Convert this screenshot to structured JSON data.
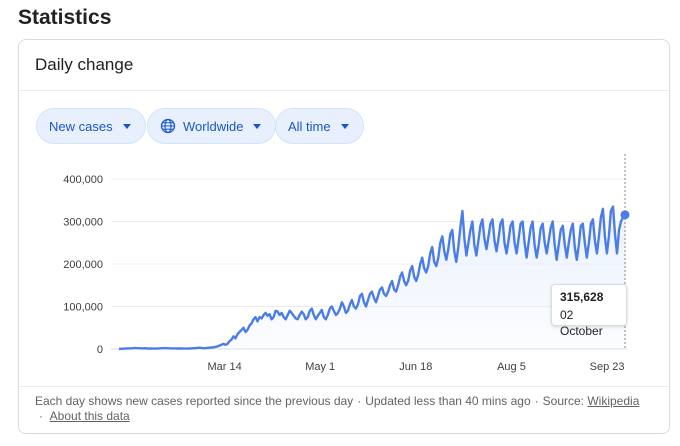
{
  "page": {
    "heading": "Statistics"
  },
  "card": {
    "title": "Daily change"
  },
  "filters": {
    "metric": "New cases",
    "region": "Worldwide",
    "range": "All time"
  },
  "icons": {
    "region_icon": "globe-icon",
    "dropdown_icon": "caret-down-icon"
  },
  "colors": {
    "line": "#4a7de8",
    "area_fill": "#e8f0fe",
    "chip_text": "#1a56c8"
  },
  "tooltip": {
    "value": "315,628",
    "date": "02 October"
  },
  "footer": {
    "note": "Each day shows new cases reported since the previous day",
    "updated": "Updated less than 40 mins ago",
    "source_label": "Source:",
    "source_link": "Wikipedia",
    "about_link": "About this data"
  },
  "chart_data": {
    "type": "area",
    "title": "",
    "xlabel": "",
    "ylabel": "",
    "ylim": [
      0,
      400000
    ],
    "y_ticks": [
      "0",
      "100,000",
      "200,000",
      "300,000",
      "400,000"
    ],
    "x_ticks": [
      "Mar 14",
      "May 1",
      "Jun 18",
      "Aug 5",
      "Sep 23"
    ],
    "x_tick_days": [
      53,
      101,
      149,
      197,
      245
    ],
    "x_range_days": [
      0,
      254
    ],
    "grid": true,
    "series": [
      {
        "values": [
          0,
          500,
          800,
          1000,
          1200,
          1400,
          1600,
          2000,
          2500,
          2000,
          1800,
          1600,
          1500,
          2000,
          1000,
          1200,
          1400,
          1000,
          900,
          1100,
          1500,
          1800,
          2000,
          2200,
          1800,
          1600,
          1500,
          1400,
          1300,
          1200,
          1200,
          1100,
          1000,
          900,
          1000,
          1200,
          1500,
          1800,
          2000,
          2500,
          3000,
          2500,
          2000,
          2200,
          2500,
          3000,
          3500,
          4000,
          5000,
          6000,
          8000,
          10000,
          12000,
          10000,
          12000,
          18000,
          22000,
          30000,
          25000,
          35000,
          40000,
          45000,
          50000,
          40000,
          45000,
          55000,
          60000,
          70000,
          75000,
          65000,
          75000,
          72000,
          80000,
          85000,
          78000,
          82000,
          70000,
          75000,
          90000,
          88000,
          80000,
          85000,
          75000,
          70000,
          80000,
          90000,
          85000,
          78000,
          72000,
          70000,
          80000,
          88000,
          82000,
          70000,
          75000,
          90000,
          95000,
          80000,
          70000,
          78000,
          85000,
          92000,
          75000,
          70000,
          80000,
          95000,
          100000,
          90000,
          80000,
          85000,
          95000,
          110000,
          100000,
          85000,
          90000,
          105000,
          115000,
          100000,
          95000,
          105000,
          125000,
          130000,
          110000,
          100000,
          115000,
          130000,
          135000,
          120000,
          110000,
          125000,
          140000,
          145000,
          130000,
          125000,
          135000,
          150000,
          160000,
          140000,
          135000,
          150000,
          170000,
          180000,
          160000,
          150000,
          160000,
          185000,
          195000,
          170000,
          160000,
          175000,
          200000,
          215000,
          190000,
          180000,
          195000,
          225000,
          240000,
          205000,
          195000,
          215000,
          250000,
          265000,
          230000,
          210000,
          235000,
          270000,
          280000,
          230000,
          205000,
          240000,
          285000,
          325000,
          260000,
          220000,
          250000,
          280000,
          300000,
          245000,
          220000,
          255000,
          290000,
          305000,
          260000,
          235000,
          265000,
          295000,
          305000,
          255000,
          230000,
          260000,
          295000,
          305000,
          250000,
          225000,
          255000,
          290000,
          300000,
          250000,
          225000,
          260000,
          295000,
          300000,
          250000,
          215000,
          250000,
          285000,
          300000,
          245000,
          215000,
          245000,
          285000,
          295000,
          250000,
          225000,
          255000,
          285000,
          300000,
          245000,
          210000,
          245000,
          280000,
          290000,
          245000,
          215000,
          250000,
          280000,
          295000,
          240000,
          210000,
          245000,
          290000,
          295000,
          250000,
          215000,
          250000,
          295000,
          305000,
          255000,
          225000,
          265000,
          310000,
          330000,
          265000,
          225000,
          265000,
          325000,
          335000,
          270000,
          225000,
          280000,
          300000,
          310000,
          315628
        ]
      }
    ],
    "highlight": {
      "label_value": "315,628",
      "label_date": "02 October"
    }
  }
}
